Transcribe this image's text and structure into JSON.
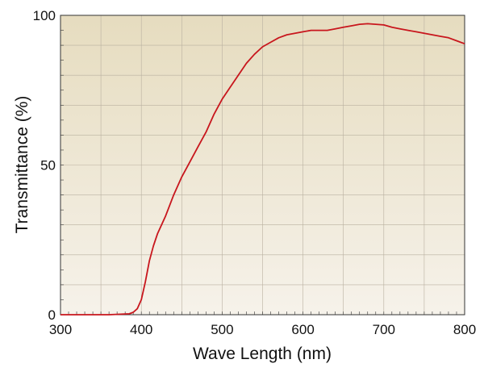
{
  "chart_data": {
    "type": "line",
    "title": "",
    "xlabel": "Wave Length (nm)",
    "ylabel": "Transmittance (%)",
    "xlim": [
      300,
      800
    ],
    "ylim": [
      0,
      100
    ],
    "x_ticks": [
      300,
      400,
      500,
      600,
      700,
      800
    ],
    "y_ticks": [
      0,
      50,
      100
    ],
    "grid": "on",
    "legend": "none",
    "colors": {
      "line": "#c8161d",
      "plot_bg_top": "#e6dcbf",
      "plot_bg_bottom": "#f6f2ea",
      "grid": "#b9b0a0",
      "axis": "#333333"
    },
    "series": [
      {
        "x": [
          300,
          330,
          360,
          385,
          390,
          395,
          400,
          405,
          410,
          415,
          420,
          430,
          440,
          450,
          460,
          470,
          480,
          490,
          500,
          510,
          520,
          530,
          540,
          550,
          560,
          570,
          580,
          590,
          600,
          610,
          620,
          630,
          640,
          650,
          660,
          670,
          680,
          690,
          700,
          710,
          720,
          730,
          740,
          750,
          760,
          770,
          780,
          790,
          795,
          800
        ],
        "y": [
          0,
          0,
          0,
          0.3,
          0.8,
          2,
          5,
          11,
          18,
          23,
          27,
          33,
          40,
          46,
          51,
          56,
          61,
          67,
          72,
          76,
          80,
          84,
          87,
          89.5,
          91,
          92.5,
          93.5,
          94,
          94.5,
          95,
          95,
          95,
          95.5,
          96,
          96.5,
          97,
          97.2,
          97,
          96.8,
          96,
          95.5,
          95,
          94.5,
          94,
          93.5,
          93,
          92.5,
          91.5,
          91,
          90.5
        ]
      }
    ]
  }
}
